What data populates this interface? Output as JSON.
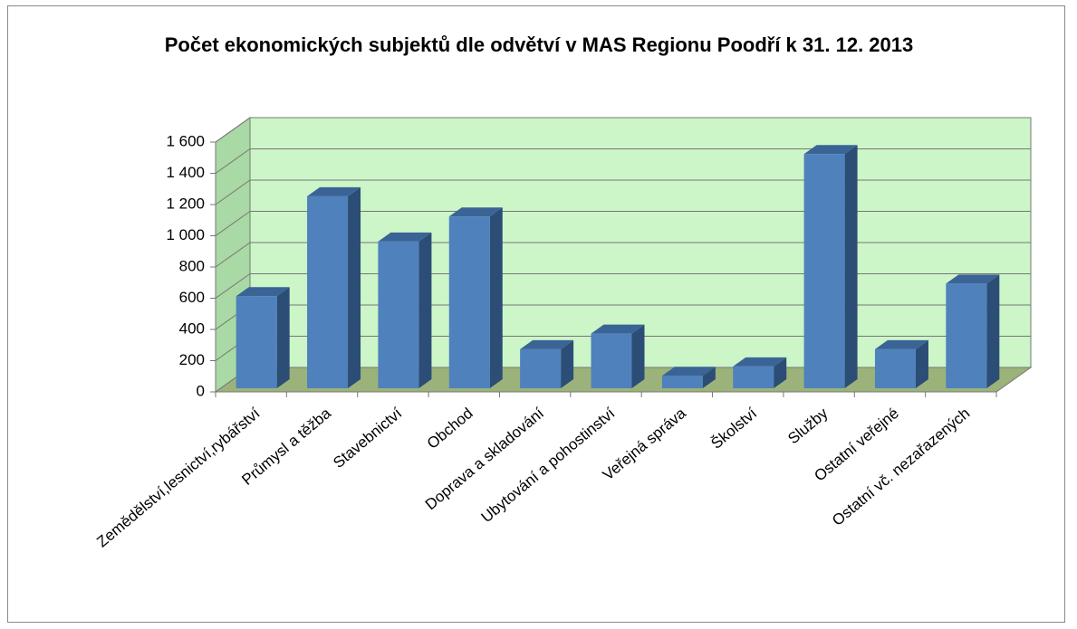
{
  "chart_data": {
    "type": "bar",
    "title": "Počet ekonomických subjektů dle odvětví v MAS Regionu Poodří  k 31. 12. 2013",
    "categories": [
      "Zemědělství,lesnictví,rybářství",
      "Průmysl a těžba",
      "Stavebnictví",
      "Obchod",
      "Doprava a skladování",
      "Ubytování a pohostinství",
      "Veřejná správa",
      "Školství",
      "Služby",
      "Ostatní veřejné",
      "Ostatní vč. nezařazených"
    ],
    "values": [
      590,
      1230,
      940,
      1100,
      250,
      350,
      80,
      140,
      1500,
      250,
      670
    ],
    "color": "#4f81bd",
    "ylim": [
      0,
      1600
    ],
    "yticks": [
      0,
      200,
      400,
      600,
      800,
      {
        "value": 1000,
        "label": "1 000"
      },
      {
        "value": 1200,
        "label": "1 200"
      },
      {
        "value": 1400,
        "label": "1 400"
      },
      {
        "value": 1600,
        "label": "1 600"
      }
    ],
    "grid": true
  }
}
